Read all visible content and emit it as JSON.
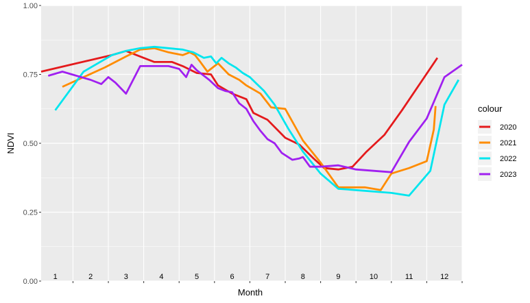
{
  "chart_data": {
    "type": "line",
    "title": "",
    "xlabel": "Month",
    "ylabel": "NDVI",
    "ylim": [
      0,
      1
    ],
    "xlim": [
      0.6,
      12.5
    ],
    "y_ticks": [
      "0.00",
      "0.25",
      "0.50",
      "0.75",
      "1.00"
    ],
    "x_tick_labels": [
      "1",
      "2",
      "3",
      "4",
      "5",
      "6",
      "7",
      "8",
      "9",
      "10",
      "11",
      "12"
    ],
    "grid": true,
    "legend_title": "colour",
    "legend_position": "right",
    "series": [
      {
        "name": "2020",
        "color": "#e41a1c",
        "x": [
          0.6,
          1.6,
          2.6,
          3.0,
          3.3,
          3.8,
          4.3,
          4.6,
          5.0,
          5.4,
          5.6,
          6.0,
          6.4,
          6.6,
          7.0,
          7.5,
          7.9,
          8.3,
          8.6,
          9.0,
          9.4,
          9.8,
          10.3,
          10.8,
          11.3,
          11.8
        ],
        "y": [
          0.76,
          0.79,
          0.82,
          0.835,
          0.82,
          0.795,
          0.795,
          0.78,
          0.755,
          0.75,
          0.71,
          0.68,
          0.66,
          0.61,
          0.585,
          0.52,
          0.495,
          0.445,
          0.41,
          0.405,
          0.415,
          0.47,
          0.53,
          0.62,
          0.715,
          0.81
        ]
      },
      {
        "name": "2021",
        "color": "#ff8c00",
        "x": [
          1.2,
          1.8,
          2.4,
          3.0,
          3.4,
          3.8,
          4.2,
          4.6,
          4.8,
          4.95,
          5.1,
          5.3,
          5.6,
          5.9,
          6.2,
          6.4,
          6.6,
          6.8,
          7.1,
          7.5,
          8.0,
          8.5,
          9.0,
          9.5,
          9.75,
          10.2,
          10.5,
          11.0,
          11.5,
          11.7,
          11.75
        ],
        "y": [
          0.705,
          0.74,
          0.775,
          0.815,
          0.84,
          0.845,
          0.83,
          0.82,
          0.83,
          0.82,
          0.795,
          0.76,
          0.79,
          0.75,
          0.73,
          0.71,
          0.695,
          0.68,
          0.63,
          0.625,
          0.51,
          0.43,
          0.34,
          0.34,
          0.34,
          0.33,
          0.39,
          0.41,
          0.435,
          0.55,
          0.635
        ]
      },
      {
        "name": "2022",
        "color": "#00e5ee",
        "x": [
          1.0,
          1.4,
          1.8,
          2.2,
          2.6,
          3.0,
          3.4,
          3.8,
          4.2,
          4.6,
          4.9,
          5.05,
          5.2,
          5.4,
          5.55,
          5.7,
          5.9,
          6.1,
          6.3,
          6.5,
          6.7,
          6.9,
          7.2,
          7.6,
          8.0,
          8.5,
          9.0,
          9.5,
          10.0,
          10.5,
          11.0,
          11.6,
          12.0,
          12.4
        ],
        "y": [
          0.62,
          0.69,
          0.76,
          0.79,
          0.82,
          0.835,
          0.845,
          0.85,
          0.845,
          0.84,
          0.83,
          0.82,
          0.81,
          0.815,
          0.79,
          0.81,
          0.79,
          0.775,
          0.755,
          0.74,
          0.715,
          0.69,
          0.64,
          0.55,
          0.47,
          0.39,
          0.335,
          0.33,
          0.325,
          0.32,
          0.31,
          0.4,
          0.64,
          0.73
        ]
      },
      {
        "name": "2023",
        "color": "#a020f0",
        "x": [
          0.8,
          1.2,
          1.6,
          2.0,
          2.3,
          2.5,
          2.7,
          3.0,
          3.4,
          3.8,
          4.2,
          4.5,
          4.7,
          4.85,
          5.0,
          5.15,
          5.35,
          5.6,
          5.8,
          6.0,
          6.2,
          6.4,
          6.6,
          6.8,
          7.0,
          7.2,
          7.4,
          7.7,
          7.9,
          8.0,
          8.2,
          8.5,
          9.0,
          9.5,
          10.0,
          10.5,
          11.0,
          11.5,
          12.0,
          12.5
        ],
        "y": [
          0.745,
          0.76,
          0.745,
          0.73,
          0.715,
          0.74,
          0.72,
          0.68,
          0.78,
          0.78,
          0.78,
          0.77,
          0.74,
          0.785,
          0.765,
          0.75,
          0.73,
          0.7,
          0.69,
          0.685,
          0.645,
          0.625,
          0.58,
          0.545,
          0.515,
          0.5,
          0.465,
          0.44,
          0.445,
          0.45,
          0.415,
          0.415,
          0.42,
          0.405,
          0.4,
          0.395,
          0.505,
          0.59,
          0.74,
          0.785
        ]
      }
    ]
  }
}
